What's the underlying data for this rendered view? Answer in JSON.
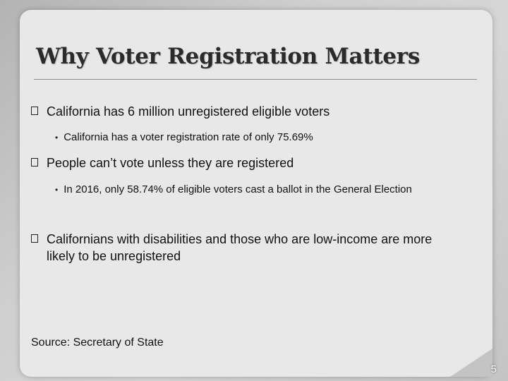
{
  "slide": {
    "title": "Why Voter Registration Matters",
    "bullets": [
      {
        "text": "California has 6 million unregistered eligible voters",
        "sub": "California has a voter registration rate of only 75.69%"
      },
      {
        "text": "People can’t vote unless they are registered",
        "sub": "In 2016, only 58.74% of eligible voters cast a ballot in the General Election"
      },
      {
        "text": "Californians with disabilities and those who are low-income are more likely to be unregistered"
      }
    ],
    "source": "Source: Secretary of State",
    "page_number": "5",
    "bullet_glyph": "•"
  }
}
